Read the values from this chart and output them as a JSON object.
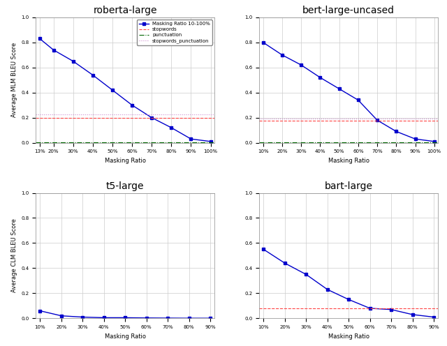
{
  "roberta_large": {
    "title": "roberta-large",
    "x_ticks": [
      "13%",
      "20%",
      "30%",
      "40%",
      "50%",
      "60%",
      "70%",
      "80%",
      "90%",
      "100%"
    ],
    "x_values": [
      0.13,
      0.2,
      0.3,
      0.4,
      0.5,
      0.6,
      0.7,
      0.8,
      0.9,
      1.0
    ],
    "y_values": [
      0.83,
      0.74,
      0.65,
      0.54,
      0.42,
      0.3,
      0.2,
      0.12,
      0.03,
      0.01
    ],
    "stopwords": 0.2,
    "punctuation": 0.005,
    "stopwords_punctuation": 0.225,
    "ylabel": "Average MLM BLEU Score",
    "ylim": [
      0.0,
      1.0
    ]
  },
  "bert_large_uncased": {
    "title": "bert-large-uncased",
    "x_ticks": [
      "10%",
      "20%",
      "30%",
      "40%",
      "50%",
      "60%",
      "70%",
      "80%",
      "90%",
      "100%"
    ],
    "x_values": [
      0.1,
      0.2,
      0.3,
      0.4,
      0.5,
      0.6,
      0.7,
      0.8,
      0.9,
      1.0
    ],
    "y_values": [
      0.8,
      0.7,
      0.62,
      0.52,
      0.43,
      0.34,
      0.18,
      0.09,
      0.03,
      0.01
    ],
    "stopwords": 0.175,
    "punctuation": 0.005,
    "stopwords_punctuation": 0.195,
    "ylabel": "",
    "ylim": [
      0.0,
      1.0
    ]
  },
  "t5_large": {
    "title": "t5-large",
    "x_ticks": [
      "10%",
      "20%",
      "30%",
      "40%",
      "50%",
      "60%",
      "70%",
      "80%",
      "90%"
    ],
    "x_values": [
      0.1,
      0.2,
      0.3,
      0.4,
      0.5,
      0.6,
      0.7,
      0.8,
      0.9
    ],
    "y_values": [
      0.06,
      0.02,
      0.01,
      0.005,
      0.005,
      0.003,
      0.002,
      0.001,
      0.001
    ],
    "stopwords": null,
    "punctuation": null,
    "stopwords_punctuation": null,
    "ylabel": "Average CLM BLEU Score",
    "ylim": [
      0.0,
      1.0
    ]
  },
  "bart_large": {
    "title": "bart-large",
    "x_ticks": [
      "10%",
      "20%",
      "30%",
      "40%",
      "50%",
      "60%",
      "70%",
      "80%",
      "90%"
    ],
    "x_values": [
      0.1,
      0.2,
      0.3,
      0.4,
      0.5,
      0.6,
      0.7,
      0.8,
      0.9
    ],
    "y_values": [
      0.55,
      0.44,
      0.35,
      0.23,
      0.15,
      0.08,
      0.07,
      0.03,
      0.01
    ],
    "stopwords": 0.08,
    "punctuation": null,
    "stopwords_punctuation": null,
    "ylabel": "",
    "ylim": [
      0.0,
      1.0
    ]
  },
  "legend": {
    "line_label": "Masking Ratio 10-100%",
    "stopwords_label": "stopwords",
    "punctuation_label": "punctuation",
    "stopwords_punctuation_label": "stopwords_punctuation"
  },
  "line_color": "#0000cc",
  "stopwords_color": "#ff4444",
  "punctuation_color": "#006600",
  "stopwords_punctuation_color": "#cc88cc",
  "background_color": "#ffffff",
  "grid_color": "#cccccc"
}
